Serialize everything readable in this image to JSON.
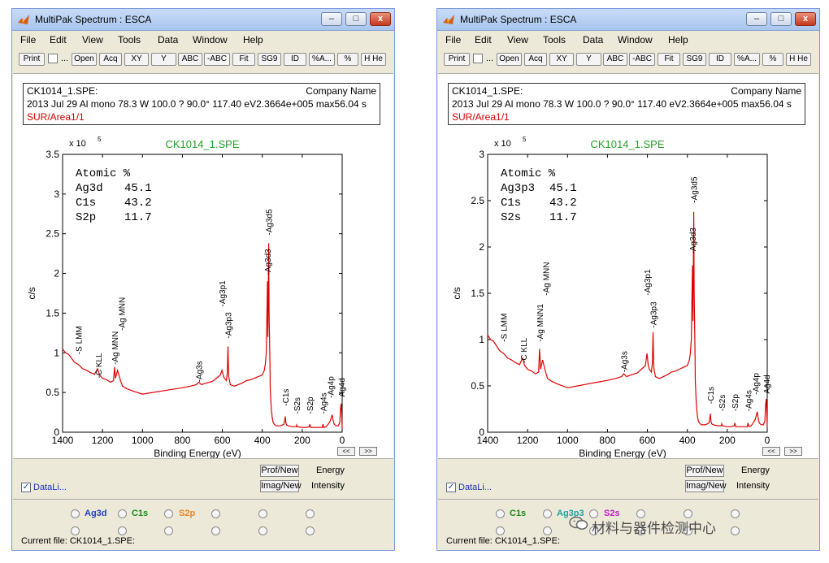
{
  "menu": [
    "File",
    "Edit",
    "View",
    "Tools",
    "Data",
    "Window",
    "Help"
  ],
  "toolbar": {
    "dots": "...",
    "buttons": [
      "Print",
      "Open",
      "Acq",
      "XY",
      "Y",
      "ABC",
      "-ABC",
      "Fit",
      "SG9",
      "ID",
      "%A...",
      "%",
      "H He"
    ]
  },
  "common": {
    "title": "MultiPak Spectrum : ESCA",
    "file_label": "CK1014_1.SPE:",
    "company": "Company Name",
    "params": "2013 Jul 29  Al mono  78.3 W  100.0 ?  90.0°  117.40 eV2.3664e+005 max56.04 s",
    "region": "SUR/Area1/1",
    "chart_title_color": "#22a022",
    "curve_color": "#e00000",
    "y_exponent": "x 10",
    "y_exponent_power": "5",
    "prof_button": "Prof/New",
    "imag_button": "Imag/New",
    "energy_label": "Energy",
    "intensity_label": "Intensity",
    "datalist_label": "DataLi...",
    "datalist_checked": true,
    "nav_back": "<<",
    "nav_forward": ">>",
    "status": "Current file: CK1014_1.SPE:",
    "window_buttons": {
      "min": "–",
      "max": "□",
      "close": "x"
    }
  },
  "watermark": "材料与器件检测中心",
  "windows": [
    {
      "id": "left",
      "radio_labels": [
        {
          "text": "Ag3d",
          "color": "#1f3fd0"
        },
        {
          "text": "C1s",
          "color": "#1a8a1a"
        },
        {
          "text": "S2p",
          "color": "#f08020"
        }
      ],
      "chart_data": {
        "type": "line",
        "title": "CK1014_1.SPE",
        "xlabel": "Binding Energy (eV)",
        "ylabel": "c/s",
        "xlim": [
          1400,
          0
        ],
        "ylim": [
          0,
          3.5
        ],
        "x_ticks": [
          "1400",
          "1200",
          "1000",
          "800",
          "600",
          "400",
          "200",
          "0"
        ],
        "y_ticks": [
          "0",
          "0.5",
          "1",
          "1.5",
          "2",
          "2.5",
          "3",
          "3.5"
        ],
        "atomic_heading": "Atomic %",
        "atomic": [
          {
            "element": "Ag3d",
            "percent": "45.1"
          },
          {
            "element": "C1s",
            "percent": "43.2"
          },
          {
            "element": "S2p",
            "percent": "11.7"
          }
        ],
        "peaks": [
          {
            "label": "S LMM",
            "x": 1320,
            "y": 0.95
          },
          {
            "label": "C KLL",
            "x": 1220,
            "y": 0.65
          },
          {
            "label": "Ag MNN",
            "x": 1140,
            "y": 0.82
          },
          {
            "label": "Ag MNN",
            "x": 1105,
            "y": 1.25
          },
          {
            "label": "Ag3s",
            "x": 718,
            "y": 0.6
          },
          {
            "label": "Ag3p3",
            "x": 572,
            "y": 1.15
          },
          {
            "label": "Ag3p1",
            "x": 602,
            "y": 1.55
          },
          {
            "label": "Ag3d3",
            "x": 374,
            "y": 1.95
          },
          {
            "label": "Ag3d5",
            "x": 368,
            "y": 2.45
          },
          {
            "label": "C1s",
            "x": 285,
            "y": 0.3
          },
          {
            "label": "S2s",
            "x": 228,
            "y": 0.2
          },
          {
            "label": "S2p",
            "x": 162,
            "y": 0.2
          },
          {
            "label": "Ag4s",
            "x": 96,
            "y": 0.2
          },
          {
            "label": "Ag4p",
            "x": 58,
            "y": 0.4
          },
          {
            "label": "Ag4d",
            "x": 5,
            "y": 0.38
          }
        ],
        "series": [
          {
            "name": "",
            "x": [
              1400,
              1385,
              1370,
              1355,
              1340,
              1320,
              1300,
              1280,
              1260,
              1240,
              1225,
              1215,
              1200,
              1180,
              1160,
              1145,
              1140,
              1135,
              1125,
              1110,
              1100,
              1080,
              1050,
              1000,
              950,
              900,
              850,
              800,
              760,
              730,
              718,
              705,
              680,
              650,
              630,
              610,
              602,
              596,
              590,
              580,
              575,
              572,
              568,
              560,
              540,
              520,
              500,
              480,
              460,
              440,
              420,
              400,
              390,
              385,
              380,
              376,
              374,
              372,
              368,
              366,
              362,
              360,
              355,
              350,
              345,
              340,
              335,
              330,
              320,
              310,
              300,
              292,
              288,
              285,
              282,
              278,
              270,
              250,
              230,
              228,
              225,
              200,
              180,
              165,
              162,
              158,
              140,
              120,
              100,
              96,
              92,
              80,
              70,
              60,
              55,
              50,
              45,
              40,
              30,
              20,
              12,
              8,
              5,
              2,
              0
            ],
            "y": [
              1.05,
              1.0,
              0.98,
              0.93,
              0.88,
              0.85,
              0.8,
              0.78,
              0.75,
              0.73,
              0.8,
              0.72,
              0.68,
              0.66,
              0.63,
              0.65,
              0.82,
              0.68,
              0.78,
              0.65,
              0.58,
              0.55,
              0.52,
              0.48,
              0.5,
              0.52,
              0.54,
              0.56,
              0.58,
              0.6,
              0.63,
              0.6,
              0.62,
              0.64,
              0.68,
              0.72,
              0.78,
              0.72,
              0.68,
              0.65,
              0.75,
              1.08,
              0.7,
              0.6,
              0.58,
              0.6,
              0.62,
              0.65,
              0.66,
              0.68,
              0.7,
              0.72,
              0.78,
              0.85,
              1.0,
              1.6,
              1.9,
              1.2,
              2.38,
              1.5,
              0.9,
              0.55,
              0.3,
              0.18,
              0.12,
              0.1,
              0.09,
              0.08,
              0.08,
              0.08,
              0.09,
              0.1,
              0.14,
              0.2,
              0.12,
              0.09,
              0.08,
              0.07,
              0.07,
              0.09,
              0.07,
              0.06,
              0.06,
              0.07,
              0.1,
              0.06,
              0.06,
              0.06,
              0.06,
              0.1,
              0.06,
              0.07,
              0.1,
              0.14,
              0.18,
              0.22,
              0.15,
              0.1,
              0.08,
              0.08,
              0.12,
              0.3,
              0.36,
              0.2,
              0.05
            ]
          }
        ]
      }
    },
    {
      "id": "right",
      "radio_labels": [
        {
          "text": "C1s",
          "color": "#1a8a1a"
        },
        {
          "text": "Ag3p3",
          "color": "#20a0a8"
        },
        {
          "text": "S2s",
          "color": "#c020c0"
        }
      ],
      "chart_data": {
        "type": "line",
        "title": "CK1014_1.SPE",
        "xlabel": "Binding Energy (eV)",
        "ylabel": "c/s",
        "xlim": [
          1400,
          0
        ],
        "ylim": [
          0,
          3
        ],
        "x_ticks": [
          "1400",
          "1200",
          "1000",
          "800",
          "600",
          "400",
          "200",
          "0"
        ],
        "y_ticks": [
          "0",
          "0.5",
          "1",
          "1.5",
          "2",
          "2.5",
          "3"
        ],
        "atomic_heading": "Atomic %",
        "atomic": [
          {
            "element": "Ag3p3",
            "percent": "45.1"
          },
          {
            "element": "C1s",
            "percent": "43.2"
          },
          {
            "element": "S2s",
            "percent": "11.7"
          }
        ],
        "peaks": [
          {
            "label": "S LMM",
            "x": 1320,
            "y": 0.95
          },
          {
            "label": "C KLL",
            "x": 1220,
            "y": 0.72
          },
          {
            "label": "Ag MNN1",
            "x": 1140,
            "y": 0.95
          },
          {
            "label": "Ag MNN",
            "x": 1108,
            "y": 1.45
          },
          {
            "label": "Ag3s",
            "x": 718,
            "y": 0.62
          },
          {
            "label": "Ag3p3",
            "x": 572,
            "y": 1.1
          },
          {
            "label": "Ag3p1",
            "x": 602,
            "y": 1.45
          },
          {
            "label": "Ag3d3",
            "x": 374,
            "y": 1.9
          },
          {
            "label": "Ag3d5",
            "x": 368,
            "y": 2.45
          },
          {
            "label": "C1s",
            "x": 285,
            "y": 0.28
          },
          {
            "label": "S2s",
            "x": 228,
            "y": 0.2
          },
          {
            "label": "S2p",
            "x": 162,
            "y": 0.2
          },
          {
            "label": "Ag4s",
            "x": 96,
            "y": 0.2
          },
          {
            "label": "Ag4p",
            "x": 58,
            "y": 0.38
          },
          {
            "label": "Ag4d",
            "x": 5,
            "y": 0.36
          }
        ],
        "series": [
          {
            "name": "",
            "x": [
              1400,
              1385,
              1370,
              1355,
              1340,
              1320,
              1300,
              1280,
              1260,
              1240,
              1225,
              1215,
              1200,
              1180,
              1160,
              1145,
              1140,
              1135,
              1125,
              1110,
              1100,
              1080,
              1050,
              1000,
              950,
              900,
              850,
              800,
              760,
              730,
              718,
              705,
              680,
              650,
              630,
              610,
              602,
              596,
              590,
              580,
              575,
              572,
              568,
              560,
              540,
              520,
              500,
              480,
              460,
              440,
              420,
              400,
              390,
              385,
              380,
              376,
              374,
              372,
              368,
              366,
              362,
              360,
              355,
              350,
              345,
              340,
              335,
              330,
              320,
              310,
              300,
              292,
              288,
              285,
              282,
              278,
              270,
              250,
              230,
              228,
              225,
              200,
              180,
              165,
              162,
              158,
              140,
              120,
              100,
              96,
              92,
              80,
              70,
              60,
              55,
              50,
              45,
              40,
              30,
              20,
              12,
              8,
              5,
              2,
              0
            ],
            "y": [
              1.05,
              1.0,
              0.98,
              0.93,
              0.88,
              0.85,
              0.8,
              0.78,
              0.75,
              0.73,
              0.8,
              0.72,
              0.68,
              0.66,
              0.63,
              0.65,
              0.9,
              0.68,
              0.78,
              0.65,
              0.58,
              0.55,
              0.52,
              0.48,
              0.5,
              0.52,
              0.54,
              0.56,
              0.58,
              0.6,
              0.63,
              0.6,
              0.62,
              0.64,
              0.68,
              0.72,
              0.85,
              0.72,
              0.68,
              0.65,
              0.75,
              1.08,
              0.7,
              0.6,
              0.58,
              0.6,
              0.62,
              0.65,
              0.66,
              0.68,
              0.7,
              0.72,
              0.78,
              0.85,
              1.0,
              1.6,
              1.8,
              1.2,
              2.38,
              1.5,
              0.9,
              0.55,
              0.3,
              0.18,
              0.12,
              0.1,
              0.09,
              0.08,
              0.08,
              0.08,
              0.09,
              0.1,
              0.14,
              0.2,
              0.12,
              0.09,
              0.08,
              0.07,
              0.07,
              0.09,
              0.07,
              0.06,
              0.06,
              0.07,
              0.1,
              0.06,
              0.06,
              0.06,
              0.06,
              0.1,
              0.06,
              0.07,
              0.1,
              0.14,
              0.18,
              0.22,
              0.15,
              0.1,
              0.08,
              0.08,
              0.12,
              0.3,
              0.36,
              0.2,
              0.05
            ]
          }
        ]
      }
    }
  ]
}
